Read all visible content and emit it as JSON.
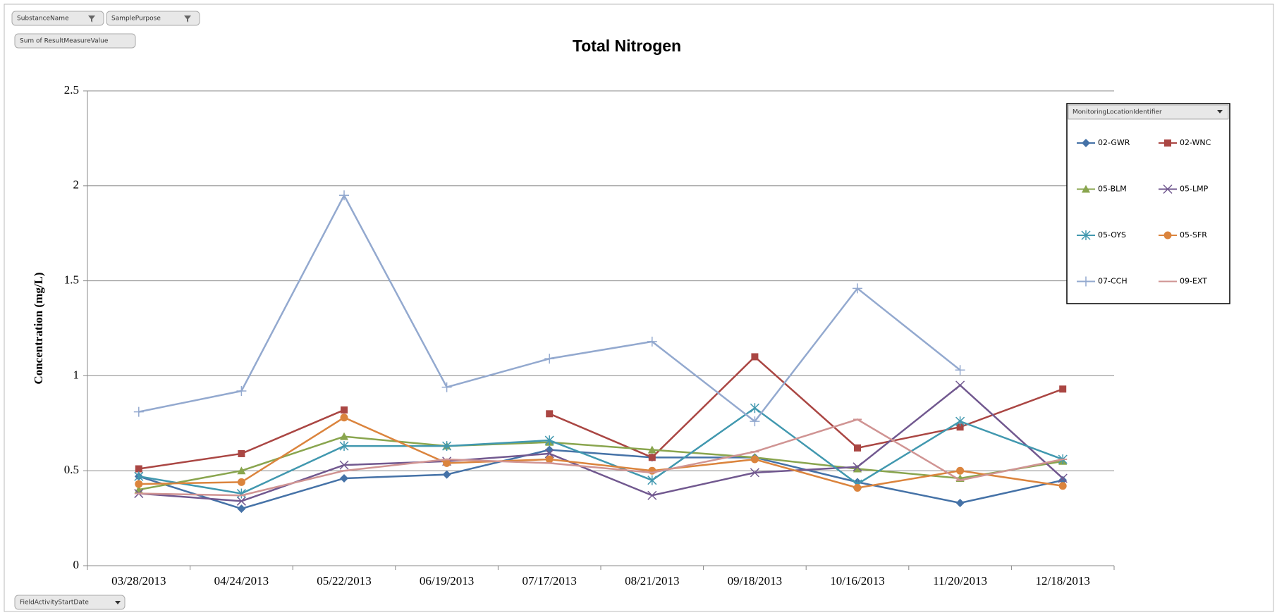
{
  "chart_data": {
    "type": "line",
    "title": "Total Nitrogen",
    "ylabel": "Concentration (mg/L)",
    "pivot_fields": {
      "filters": [
        "SubstanceName",
        "SamplePurpose"
      ],
      "value_field": "Sum of ResultMeasureValue",
      "axis_field": "FieldActivityStartDate",
      "legend_field": "MonitoringLocationIdentifier"
    },
    "categories": [
      "03/28/2013",
      "04/24/2013",
      "05/22/2013",
      "06/19/2013",
      "07/17/2013",
      "08/21/2013",
      "09/18/2013",
      "10/16/2013",
      "11/20/2013",
      "12/18/2013"
    ],
    "ylim": [
      0,
      2.5
    ],
    "yticks": [
      0,
      0.5,
      1,
      1.5,
      2,
      2.5
    ],
    "grid": true,
    "legend": "right",
    "series": [
      {
        "name": "02-GWR",
        "color": "#4572a7",
        "marker": "diamond",
        "values": [
          0.47,
          0.3,
          0.46,
          0.48,
          0.61,
          0.57,
          0.57,
          0.44,
          0.33,
          0.45
        ]
      },
      {
        "name": "02-WNC",
        "color": "#aa4643",
        "marker": "square",
        "values": [
          0.51,
          0.59,
          0.82,
          null,
          0.8,
          0.57,
          1.1,
          0.62,
          0.73,
          0.93
        ]
      },
      {
        "name": "05-BLM",
        "color": "#89a54e",
        "marker": "triangle",
        "values": [
          0.4,
          0.5,
          0.68,
          0.63,
          0.65,
          0.61,
          0.57,
          0.51,
          0.46,
          0.55
        ]
      },
      {
        "name": "05-LMP",
        "color": "#71588f",
        "marker": "x",
        "values": [
          0.38,
          0.34,
          0.53,
          0.55,
          0.59,
          0.37,
          0.49,
          0.52,
          0.95,
          0.46
        ]
      },
      {
        "name": "05-OYS",
        "color": "#4198af",
        "marker": "star",
        "values": [
          0.47,
          0.38,
          0.63,
          0.63,
          0.66,
          0.45,
          0.83,
          0.43,
          0.76,
          0.56
        ]
      },
      {
        "name": "05-SFR",
        "color": "#db843d",
        "marker": "circle",
        "values": [
          0.43,
          0.44,
          0.78,
          0.54,
          0.56,
          0.5,
          0.56,
          0.41,
          0.5,
          0.42
        ]
      },
      {
        "name": "07-CCH",
        "color": "#93a9cf",
        "marker": "plus",
        "values": [
          0.81,
          0.92,
          1.95,
          0.94,
          1.09,
          1.18,
          0.76,
          1.46,
          1.03,
          null
        ]
      },
      {
        "name": "09-EXT",
        "color": "#d09493",
        "marker": "dash",
        "values": [
          0.38,
          0.37,
          0.5,
          0.56,
          0.54,
          0.49,
          0.6,
          0.77,
          0.45,
          0.56
        ]
      }
    ]
  }
}
